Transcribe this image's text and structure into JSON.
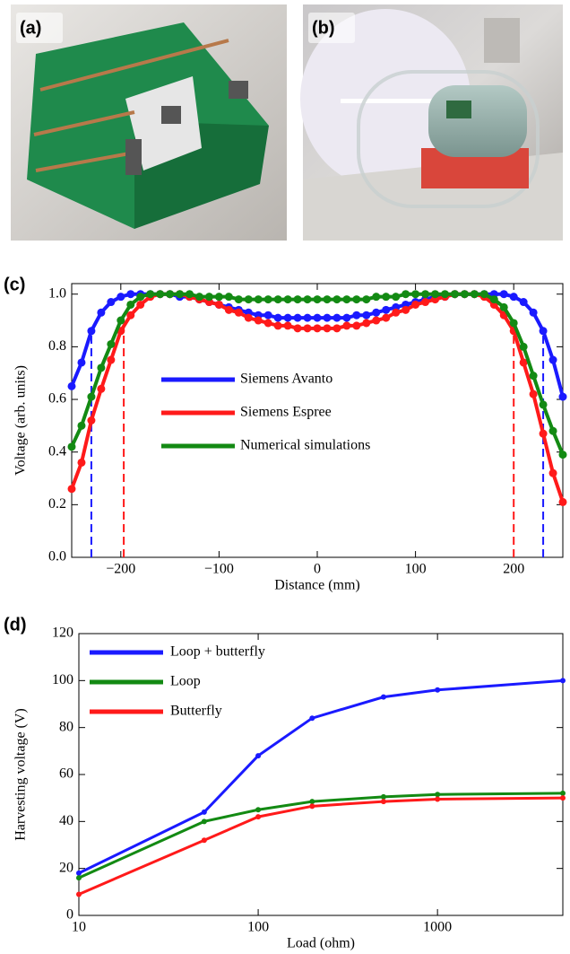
{
  "panels": {
    "a": "(a)",
    "b": "(b)",
    "c": "(c)",
    "d": "(d)"
  },
  "chart_data": [
    {
      "type": "line",
      "ylabel": "Voltage (arb. units)",
      "xlabel": "Distance (mm)",
      "xlim": [
        -250,
        250
      ],
      "ylim": [
        0,
        1.04
      ],
      "legend": "center-left",
      "xticks": [
        {
          "value": -200,
          "label": "−200"
        },
        {
          "value": -100,
          "label": "−100"
        },
        0,
        100,
        200
      ],
      "yticks": [
        {
          "value": 0,
          "label": "0.0"
        },
        0.2,
        0.4,
        0.6,
        0.8,
        {
          "value": 1,
          "label": "1.0"
        }
      ],
      "x": [
        -250,
        -240,
        -230,
        -220,
        -210,
        -200,
        -190,
        -180,
        -170,
        -160,
        -150,
        -140,
        -130,
        -120,
        -110,
        -100,
        -90,
        -80,
        -70,
        -60,
        -50,
        -40,
        -30,
        -20,
        -10,
        0,
        10,
        20,
        30,
        40,
        50,
        60,
        70,
        80,
        90,
        100,
        110,
        120,
        130,
        140,
        150,
        160,
        170,
        180,
        190,
        200,
        210,
        220,
        230,
        240,
        250
      ],
      "series": [
        {
          "name": "Siemens Avanto",
          "color": "#1a1aff",
          "values": [
            0.65,
            0.74,
            0.86,
            0.93,
            0.97,
            0.99,
            1.0,
            1.0,
            1.0,
            1.0,
            1.0,
            0.99,
            0.99,
            0.98,
            0.97,
            0.96,
            0.95,
            0.94,
            0.93,
            0.92,
            0.92,
            0.91,
            0.91,
            0.91,
            0.91,
            0.91,
            0.91,
            0.91,
            0.91,
            0.92,
            0.92,
            0.93,
            0.94,
            0.95,
            0.96,
            0.97,
            0.98,
            0.99,
            0.99,
            1.0,
            1.0,
            1.0,
            1.0,
            1.0,
            1.0,
            0.99,
            0.97,
            0.93,
            0.86,
            0.75,
            0.61
          ]
        },
        {
          "name": "Siemens Espree",
          "color": "#ff1a1a",
          "values": [
            0.26,
            0.36,
            0.52,
            0.64,
            0.75,
            0.86,
            0.92,
            0.96,
            0.99,
            1.0,
            1.0,
            1.0,
            0.99,
            0.98,
            0.97,
            0.96,
            0.94,
            0.93,
            0.91,
            0.9,
            0.89,
            0.88,
            0.88,
            0.87,
            0.87,
            0.87,
            0.87,
            0.87,
            0.88,
            0.88,
            0.89,
            0.9,
            0.91,
            0.93,
            0.94,
            0.96,
            0.97,
            0.98,
            0.99,
            1.0,
            1.0,
            1.0,
            0.99,
            0.96,
            0.92,
            0.86,
            0.74,
            0.62,
            0.47,
            0.32,
            0.21
          ]
        },
        {
          "name": "Numerical simulations",
          "color": "#138a13",
          "values": [
            0.42,
            0.5,
            0.61,
            0.72,
            0.81,
            0.9,
            0.96,
            0.99,
            1.0,
            1.0,
            1.0,
            1.0,
            1.0,
            0.99,
            0.99,
            0.99,
            0.99,
            0.98,
            0.98,
            0.98,
            0.98,
            0.98,
            0.98,
            0.98,
            0.98,
            0.98,
            0.98,
            0.98,
            0.98,
            0.98,
            0.98,
            0.99,
            0.99,
            0.99,
            1.0,
            1.0,
            1.0,
            1.0,
            1.0,
            1.0,
            1.0,
            1.0,
            1.0,
            0.98,
            0.95,
            0.89,
            0.8,
            0.69,
            0.58,
            0.48,
            0.39
          ]
        }
      ],
      "vlines": [
        {
          "x": -230,
          "top": 0.86,
          "color": "#1a1aff"
        },
        {
          "x": -197,
          "top": 0.88,
          "color": "#ff1a1a"
        },
        {
          "x": 200,
          "top": 0.86,
          "color": "#ff1a1a"
        },
        {
          "x": 230,
          "top": 0.86,
          "color": "#1a1aff"
        }
      ]
    },
    {
      "type": "line",
      "ylabel": "Harvesting voltage (V)",
      "xlabel": "Load (ohm)",
      "xscale": "log",
      "xlim": [
        10,
        5000
      ],
      "ylim": [
        0,
        120
      ],
      "legend": "upper-left",
      "xticks": [
        10,
        100,
        1000
      ],
      "yticks": [
        0,
        20,
        40,
        60,
        80,
        100,
        120
      ],
      "x": [
        10,
        50,
        100,
        200,
        500,
        1000,
        5000
      ],
      "series": [
        {
          "name": "Loop + butterfly",
          "color": "#1a1aff",
          "values": [
            18,
            44,
            68,
            84,
            93,
            96,
            100
          ]
        },
        {
          "name": "Loop",
          "color": "#138a13",
          "values": [
            16,
            40,
            45,
            48.5,
            50.5,
            51.5,
            52
          ]
        },
        {
          "name": "Butterfly",
          "color": "#ff1a1a",
          "values": [
            9,
            32,
            42,
            46.5,
            48.5,
            49.5,
            50
          ]
        }
      ]
    }
  ]
}
